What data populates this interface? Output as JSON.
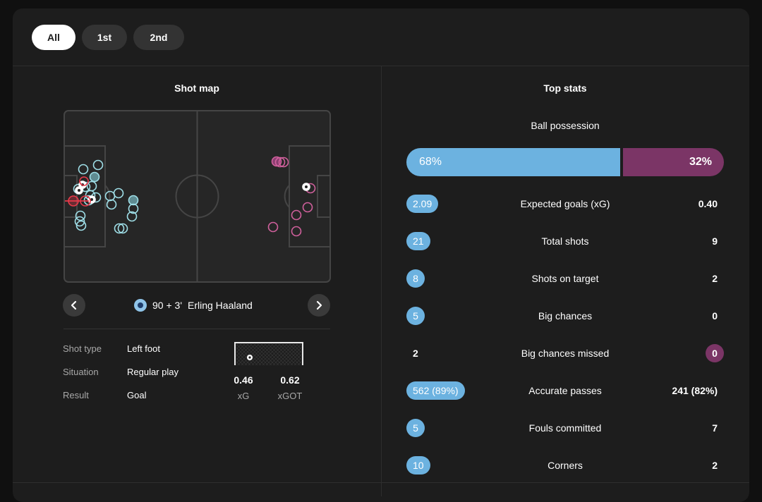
{
  "tabs": [
    {
      "label": "All",
      "active": true
    },
    {
      "label": "1st",
      "active": false
    },
    {
      "label": "2nd",
      "active": false
    }
  ],
  "shot_map": {
    "title": "Shot map",
    "selected_shot": {
      "minute": "90 + 3'",
      "player": "Erling Haaland",
      "team_badge": "manchester-city-badge-icon",
      "details": [
        {
          "label": "Shot type",
          "value": "Left foot"
        },
        {
          "label": "Situation",
          "value": "Regular play"
        },
        {
          "label": "Result",
          "value": "Goal"
        }
      ],
      "xg": "0.46",
      "xg_label": "xG",
      "xgot": "0.62",
      "xgot_label": "xGOT"
    },
    "prev_icon": "chevron-left-icon",
    "next_icon": "chevron-right-icon"
  },
  "top_stats": {
    "title": "Top stats",
    "possession": {
      "label": "Ball possession",
      "home": "68%",
      "away": "32%",
      "home_share": 68
    },
    "rows": [
      {
        "label": "Expected goals (xG)",
        "home": "2.09",
        "away": "0.40",
        "highlight": "home"
      },
      {
        "label": "Total shots",
        "home": "21",
        "away": "9",
        "highlight": "home"
      },
      {
        "label": "Shots on target",
        "home": "8",
        "away": "2",
        "highlight": "home"
      },
      {
        "label": "Big chances",
        "home": "5",
        "away": "0",
        "highlight": "home"
      },
      {
        "label": "Big chances missed",
        "home": "2",
        "away": "0",
        "highlight": "away"
      },
      {
        "label": "Accurate passes",
        "home": "562 (89%)",
        "away": "241 (82%)",
        "highlight": "home"
      },
      {
        "label": "Fouls committed",
        "home": "5",
        "away": "7",
        "highlight": "home"
      },
      {
        "label": "Corners",
        "home": "10",
        "away": "2",
        "highlight": "home"
      }
    ]
  },
  "colors": {
    "home": "#6cb2e0",
    "away": "#7b3566",
    "home_shot": "#9fdfe8",
    "away_shot": "#d0609c",
    "selected_shot": "#e8394a"
  }
}
